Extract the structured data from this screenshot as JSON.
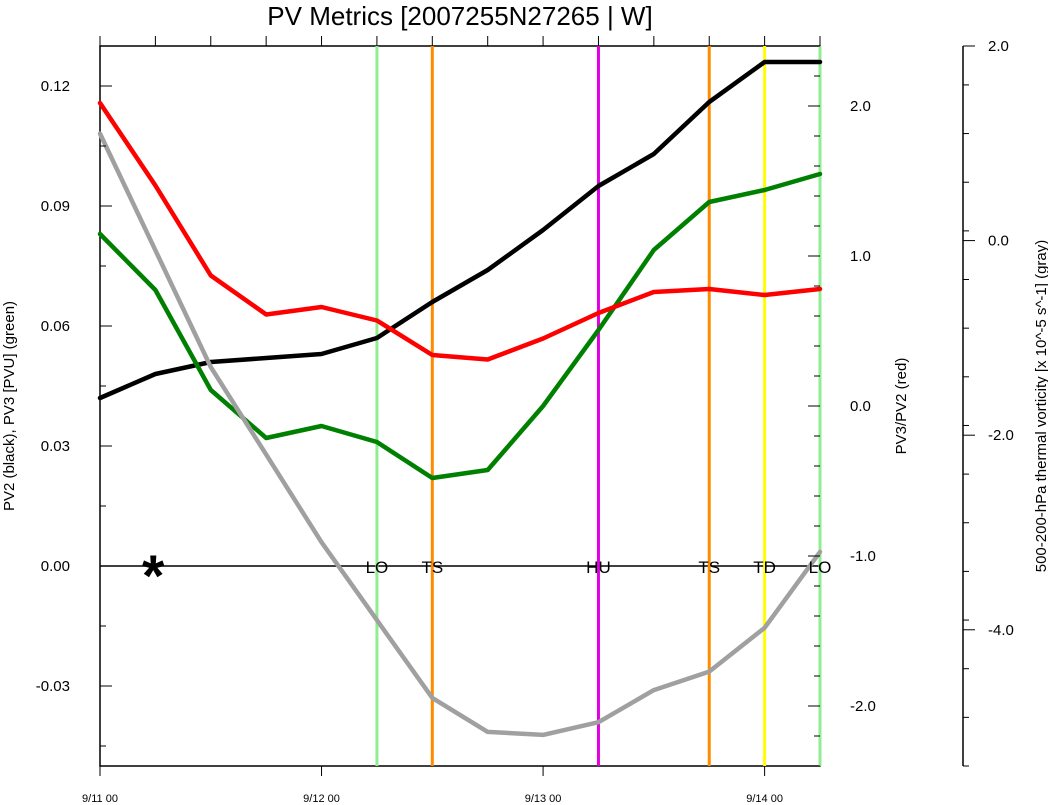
{
  "title": "PV Metrics [2007255N27265 | W]",
  "colors": {
    "pv2": "#000000",
    "pv3": "#008000",
    "ratio": "#ff0000",
    "vort": "#a0a0a0",
    "LO": "#90ee90",
    "TS": "#ff8c00",
    "HU": "#e000e0",
    "TD": "#ffff00"
  },
  "chart_data": {
    "type": "line",
    "title": "PV Metrics [2007255N27265 | W]",
    "x_unit": "days since 9/11 00 (6-hourly)",
    "x": [
      0,
      0.25,
      0.5,
      0.75,
      1.0,
      1.25,
      1.5,
      1.75,
      2.0,
      2.25,
      2.5,
      2.75,
      3.0,
      3.25
    ],
    "x_ticks": [
      {
        "x": 0,
        "label": "9/11 00"
      },
      {
        "x": 1,
        "label": "9/12 00"
      },
      {
        "x": 2,
        "label": "9/13 00"
      },
      {
        "x": 3,
        "label": "9/14 00"
      }
    ],
    "axes": {
      "left": {
        "label": "PV2 (black), PV3 [PVU] (green)",
        "ylim": [
          -0.05,
          0.13
        ],
        "ticks": [
          "0.12",
          "0.09",
          "0.06",
          "0.03",
          "0.00",
          "-0.03"
        ],
        "tick_values": [
          0.12,
          0.09,
          0.06,
          0.03,
          0.0,
          -0.03
        ]
      },
      "right_red": {
        "label": "PV3/PV2 (red)",
        "ylim": [
          -2.4,
          2.4
        ],
        "ticks": [
          "2.0",
          "1.0",
          "0.0",
          "-1.0",
          "-2.0"
        ],
        "tick_values": [
          2.0,
          1.0,
          0.0,
          -1.0,
          -2.0
        ]
      },
      "right_gray": {
        "label": "500-200-hPa thermal vorticity [x 10^-5 s^-1] (gray)",
        "ylim": [
          -5.4,
          2.0
        ],
        "ticks": [
          "2.0",
          "0.0",
          "-2.0",
          "-4.0"
        ],
        "tick_values": [
          2.0,
          0.0,
          -2.0,
          -4.0
        ]
      }
    },
    "series": [
      {
        "name": "PV2",
        "axis": "left",
        "color": "#000000",
        "values": [
          0.042,
          0.048,
          0.051,
          0.052,
          0.053,
          0.057,
          0.066,
          0.074,
          0.084,
          0.095,
          0.103,
          0.116,
          0.126,
          0.126
        ]
      },
      {
        "name": "PV3",
        "axis": "left",
        "color": "#008000",
        "values": [
          0.083,
          0.069,
          0.044,
          0.032,
          0.035,
          0.031,
          0.022,
          0.024,
          0.04,
          0.059,
          0.079,
          0.091,
          0.094,
          0.098
        ]
      },
      {
        "name": "PV3/PV2",
        "axis": "right_red",
        "color": "#ff0000",
        "values": [
          2.02,
          1.47,
          0.87,
          0.61,
          0.66,
          0.57,
          0.34,
          0.31,
          0.45,
          0.62,
          0.76,
          0.78,
          0.74,
          0.78
        ]
      },
      {
        "name": "500-200-hPa thermal vorticity",
        "axis": "right_gray",
        "color": "#a0a0a0",
        "values": [
          1.1,
          -0.1,
          -1.3,
          -2.2,
          -3.1,
          -3.9,
          -4.7,
          -5.05,
          -5.08,
          -4.95,
          -4.62,
          -4.43,
          -3.98,
          -3.2
        ]
      }
    ],
    "stages": [
      {
        "x": 1.25,
        "label": "LO",
        "color": "#90ee90"
      },
      {
        "x": 1.5,
        "label": "TS",
        "color": "#ff8c00"
      },
      {
        "x": 2.25,
        "label": "HU",
        "color": "#e000e0"
      },
      {
        "x": 2.75,
        "label": "TS",
        "color": "#ff8c00"
      },
      {
        "x": 3.0,
        "label": "TD",
        "color": "#ffff00"
      },
      {
        "x": 3.25,
        "label": "LO",
        "color": "#90ee90"
      }
    ],
    "marker": {
      "x": 0.24,
      "y": 0.0,
      "symbol": "*"
    },
    "zero_line": true,
    "grid": false,
    "legend": "none"
  }
}
